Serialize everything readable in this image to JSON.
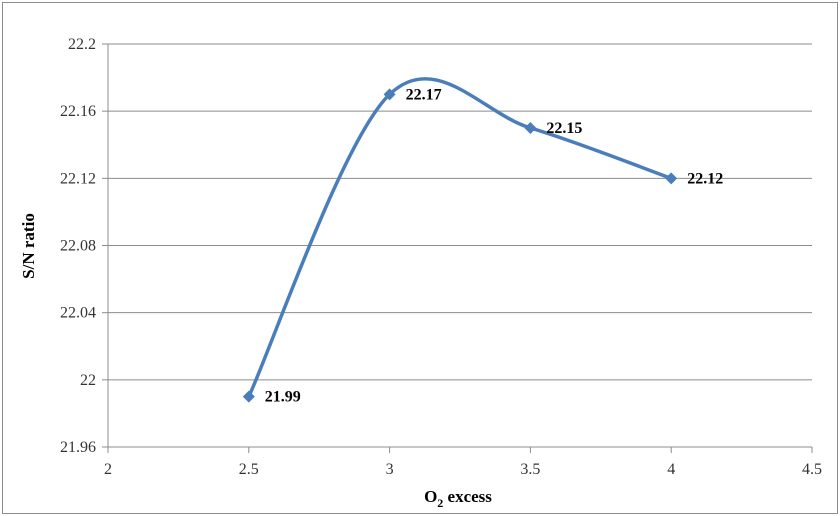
{
  "chart_data": {
    "type": "scatter",
    "smooth": true,
    "title": "",
    "xlabel": {
      "main": "O",
      "sub": "2",
      "rest": " excess"
    },
    "ylabel": "S/N ratio",
    "xlim": [
      2,
      4.5
    ],
    "ylim": [
      21.96,
      22.2
    ],
    "x_ticks": [
      "2",
      "2.5",
      "3",
      "3.5",
      "4",
      "4.5"
    ],
    "y_ticks": [
      "21.96",
      "22",
      "22.04",
      "22.08",
      "22.12",
      "22.16",
      "22.2"
    ],
    "grid": "horizontal",
    "legend": "none",
    "series": [
      {
        "x": [
          2.5,
          3,
          3.5,
          4
        ],
        "y": [
          21.99,
          22.17,
          22.15,
          22.12
        ],
        "labels": [
          "21.99",
          "22.17",
          "22.15",
          "22.12"
        ],
        "color": "#4a7ebb"
      }
    ]
  }
}
